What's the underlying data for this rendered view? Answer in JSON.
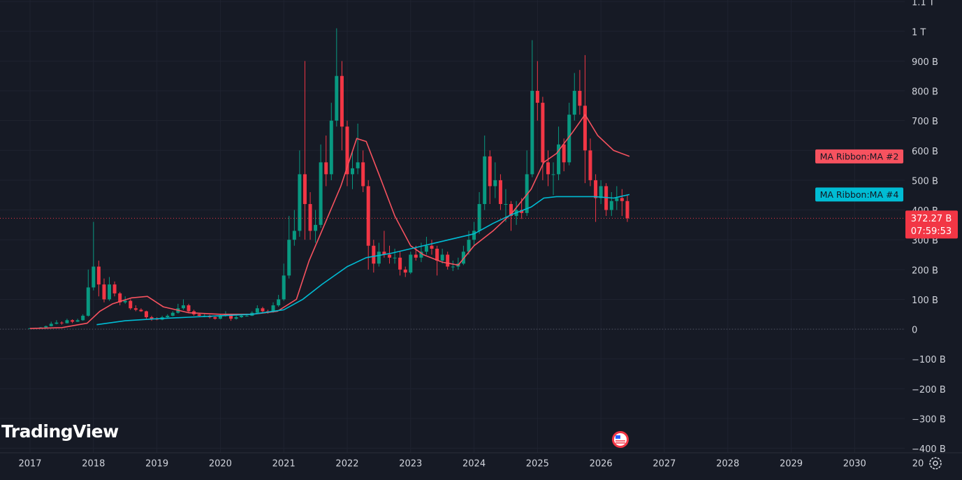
{
  "chart_data": {
    "type": "candlestick",
    "watermark": "TradingView",
    "up_color": "#089981",
    "down_color": "#f23645",
    "grid": true,
    "ylim": [
      -415,
      1105
    ],
    "yticks": [
      {
        "value": -400,
        "label": "−400 B"
      },
      {
        "value": -300,
        "label": "−300 B"
      },
      {
        "value": -200,
        "label": "−200 B"
      },
      {
        "value": -100,
        "label": "−100 B"
      },
      0,
      {
        "value": 100,
        "label": "100 B"
      },
      {
        "value": 200,
        "label": "200 B"
      },
      {
        "value": 300,
        "label": "300 B"
      },
      {
        "value": 400,
        "label": "400 B"
      },
      {
        "value": 500,
        "label": "500 B"
      },
      {
        "value": 600,
        "label": "600 B"
      },
      {
        "value": 700,
        "label": "700 B"
      },
      {
        "value": 800,
        "label": "800 B"
      },
      {
        "value": 900,
        "label": "900 B"
      },
      {
        "value": 1000,
        "label": "1 T"
      },
      {
        "value": 1100,
        "label": "1.1 T"
      }
    ],
    "xlim": [
      2016.526,
      2030.79
    ],
    "xticks": [
      2017,
      2018,
      2019,
      2020,
      2021,
      2022,
      2023,
      2024,
      2025,
      2026,
      2027,
      2028,
      2029,
      2030,
      {
        "value": 2031,
        "label": "20"
      }
    ],
    "candles": {
      "x": [
        2017.0,
        2017.083,
        2017.167,
        2017.25,
        2017.333,
        2017.417,
        2017.5,
        2017.583,
        2017.667,
        2017.75,
        2017.833,
        2017.917,
        2018.0,
        2018.083,
        2018.167,
        2018.25,
        2018.333,
        2018.417,
        2018.5,
        2018.583,
        2018.667,
        2018.75,
        2018.833,
        2018.917,
        2019.0,
        2019.083,
        2019.167,
        2019.25,
        2019.333,
        2019.417,
        2019.5,
        2019.583,
        2019.667,
        2019.75,
        2019.833,
        2019.917,
        2020.0,
        2020.083,
        2020.167,
        2020.25,
        2020.333,
        2020.417,
        2020.5,
        2020.583,
        2020.667,
        2020.75,
        2020.833,
        2020.917,
        2021.0,
        2021.083,
        2021.167,
        2021.25,
        2021.333,
        2021.417,
        2021.5,
        2021.583,
        2021.667,
        2021.75,
        2021.833,
        2021.917,
        2022.0,
        2022.083,
        2022.167,
        2022.25,
        2022.333,
        2022.417,
        2022.5,
        2022.583,
        2022.667,
        2022.75,
        2022.833,
        2022.917,
        2023.0,
        2023.083,
        2023.167,
        2023.25,
        2023.333,
        2023.417,
        2023.5,
        2023.583,
        2023.667,
        2023.75,
        2023.833,
        2023.917,
        2024.0,
        2024.083,
        2024.167,
        2024.25,
        2024.333,
        2024.417,
        2024.5,
        2024.583,
        2024.667,
        2024.75,
        2024.833,
        2024.917,
        2025.0,
        2025.083,
        2025.167,
        2025.25,
        2025.333,
        2025.417,
        2025.5,
        2025.583,
        2025.667,
        2025.75,
        2025.833,
        2025.917,
        2026.0,
        2026.083,
        2026.167,
        2026.25,
        2026.333,
        2026.417
      ],
      "open": [
        2,
        3,
        4,
        6,
        10,
        18,
        22,
        20,
        30,
        25,
        30,
        45,
        140,
        210,
        150,
        100,
        150,
        120,
        90,
        95,
        70,
        65,
        60,
        40,
        35,
        32,
        40,
        45,
        55,
        70,
        80,
        60,
        50,
        45,
        45,
        40,
        35,
        45,
        50,
        35,
        40,
        45,
        45,
        55,
        70,
        60,
        58,
        80,
        100,
        180,
        300,
        330,
        520,
        420,
        330,
        350,
        560,
        520,
        700,
        850,
        680,
        520,
        540,
        560,
        480,
        280,
        220,
        260,
        250,
        240,
        240,
        200,
        190,
        250,
        240,
        260,
        280,
        270,
        230,
        250,
        210,
        210,
        220,
        260,
        300,
        330,
        420,
        580,
        480,
        500,
        420,
        420,
        380,
        400,
        390,
        520,
        800,
        760,
        560,
        520,
        520,
        620,
        560,
        720,
        800,
        750,
        600,
        500,
        440,
        480,
        400,
        430,
        440,
        430
      ],
      "high": [
        4,
        5,
        7,
        12,
        25,
        30,
        26,
        35,
        33,
        35,
        50,
        200,
        360,
        230,
        170,
        175,
        160,
        125,
        110,
        100,
        80,
        70,
        62,
        45,
        40,
        45,
        50,
        60,
        85,
        100,
        85,
        65,
        55,
        52,
        48,
        42,
        50,
        60,
        52,
        45,
        50,
        52,
        60,
        80,
        75,
        65,
        90,
        115,
        220,
        380,
        400,
        600,
        900,
        460,
        400,
        620,
        650,
        760,
        1010,
        900,
        700,
        600,
        690,
        600,
        500,
        300,
        290,
        330,
        280,
        270,
        260,
        210,
        260,
        280,
        290,
        310,
        300,
        280,
        270,
        260,
        230,
        240,
        280,
        330,
        360,
        460,
        650,
        600,
        560,
        520,
        470,
        430,
        430,
        440,
        600,
        970,
        900,
        780,
        600,
        560,
        680,
        640,
        760,
        860,
        870,
        920,
        640,
        520,
        500,
        490,
        460,
        480,
        470,
        450
      ],
      "low": [
        2,
        3,
        4,
        5,
        9,
        16,
        15,
        19,
        20,
        24,
        28,
        42,
        130,
        110,
        90,
        95,
        110,
        80,
        85,
        65,
        60,
        58,
        35,
        28,
        30,
        30,
        38,
        43,
        52,
        65,
        55,
        45,
        40,
        40,
        36,
        32,
        33,
        42,
        28,
        32,
        38,
        42,
        44,
        52,
        55,
        52,
        55,
        75,
        95,
        170,
        280,
        310,
        300,
        300,
        290,
        340,
        480,
        500,
        680,
        600,
        480,
        470,
        520,
        460,
        200,
        190,
        210,
        240,
        220,
        220,
        180,
        175,
        185,
        230,
        225,
        250,
        250,
        180,
        220,
        200,
        195,
        200,
        215,
        250,
        280,
        320,
        400,
        420,
        440,
        400,
        360,
        330,
        350,
        370,
        380,
        510,
        700,
        500,
        480,
        450,
        500,
        530,
        550,
        700,
        720,
        490,
        480,
        360,
        420,
        380,
        380,
        400,
        380,
        360
      ],
      "close": [
        3,
        4,
        6,
        10,
        18,
        22,
        20,
        30,
        25,
        30,
        45,
        140,
        210,
        150,
        100,
        150,
        120,
        90,
        95,
        70,
        65,
        60,
        40,
        35,
        32,
        40,
        45,
        55,
        70,
        80,
        60,
        50,
        45,
        45,
        40,
        35,
        45,
        50,
        35,
        40,
        45,
        45,
        55,
        70,
        60,
        58,
        80,
        100,
        180,
        300,
        330,
        520,
        420,
        330,
        350,
        560,
        520,
        700,
        850,
        680,
        520,
        540,
        560,
        480,
        280,
        220,
        260,
        250,
        240,
        240,
        200,
        190,
        250,
        240,
        260,
        280,
        270,
        230,
        250,
        210,
        210,
        220,
        260,
        300,
        330,
        420,
        580,
        480,
        500,
        420,
        420,
        380,
        400,
        390,
        520,
        800,
        760,
        560,
        520,
        520,
        620,
        560,
        720,
        800,
        750,
        600,
        500,
        440,
        480,
        400,
        430,
        440,
        430,
        372.27
      ]
    },
    "series": [
      {
        "name": "MA Ribbon:MA #2",
        "color": "#f7525f",
        "x": [
          2017.0,
          2017.5,
          2017.9,
          2018.1,
          2018.3,
          2018.6,
          2018.85,
          2019.1,
          2019.5,
          2020.0,
          2020.5,
          2020.9,
          2021.2,
          2021.4,
          2021.6,
          2021.9,
          2022.15,
          2022.3,
          2022.5,
          2022.75,
          2023.0,
          2023.2,
          2023.5,
          2023.75,
          2024.0,
          2024.3,
          2024.6,
          2024.9,
          2025.1,
          2025.3,
          2025.55,
          2025.75,
          2025.95,
          2026.2,
          2026.45
        ],
        "values": [
          2,
          5,
          20,
          60,
          85,
          105,
          110,
          75,
          55,
          50,
          50,
          60,
          100,
          230,
          330,
          480,
          640,
          630,
          520,
          380,
          280,
          250,
          225,
          215,
          280,
          330,
          390,
          470,
          560,
          590,
          660,
          720,
          650,
          600,
          580
        ]
      },
      {
        "name": "MA Ribbon:MA #4",
        "color": "#00bcd4",
        "x": [
          2018.05,
          2018.5,
          2019.0,
          2019.5,
          2020.0,
          2020.5,
          2021.0,
          2021.3,
          2021.6,
          2022.0,
          2022.3,
          2022.7,
          2023.0,
          2023.5,
          2024.0,
          2024.3,
          2024.6,
          2024.9,
          2025.1,
          2025.3,
          2025.6,
          2025.9,
          2026.2,
          2026.45
        ],
        "values": [
          15,
          28,
          35,
          40,
          45,
          50,
          65,
          100,
          150,
          210,
          240,
          255,
          270,
          295,
          320,
          355,
          385,
          410,
          440,
          445,
          445,
          445,
          440,
          452
        ]
      }
    ],
    "last_price": {
      "value": 372.27,
      "value_label": "372.27 B",
      "countdown": "07:59:53"
    }
  }
}
